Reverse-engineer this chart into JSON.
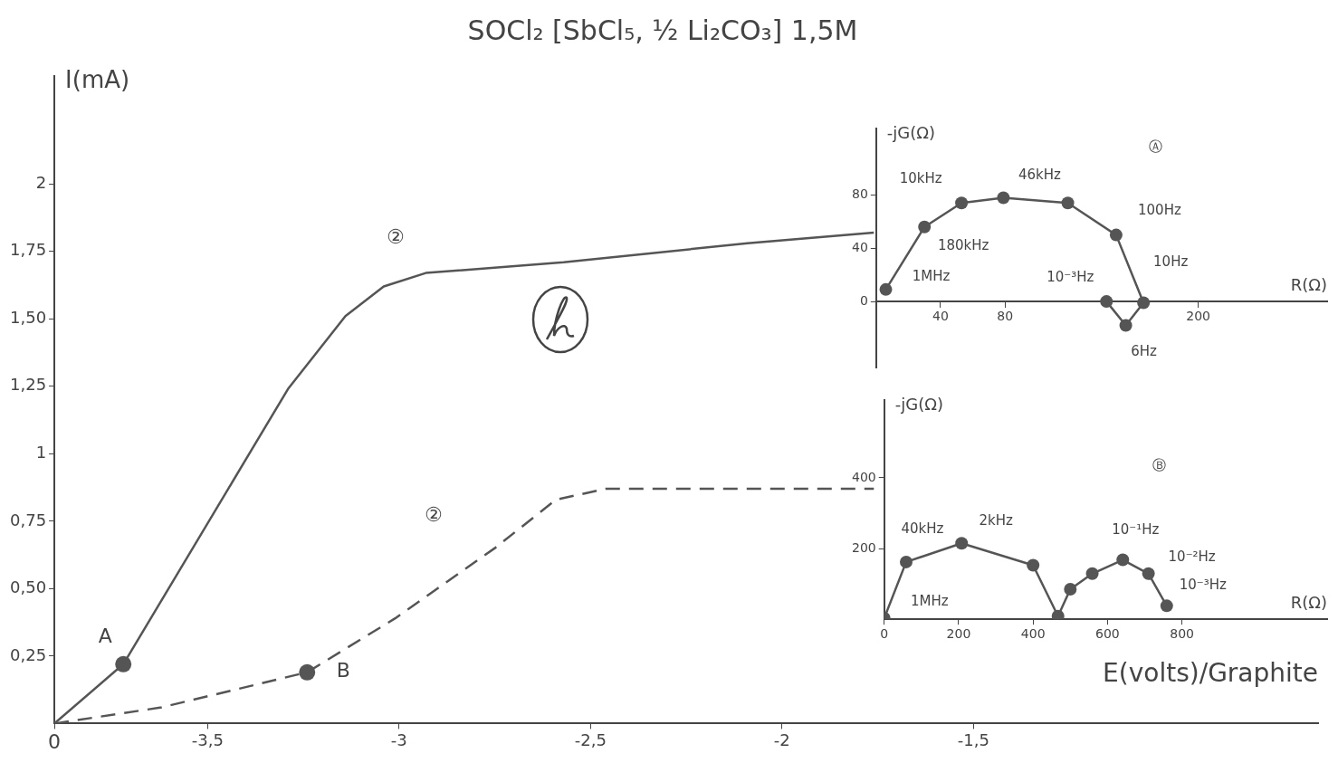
{
  "chart_data": [
    {
      "type": "line",
      "title": "SOCl₂ [SbCl₅, ½ Li₂CO₃] 1,5M",
      "xlabel": "E(volts)/Graphite",
      "ylabel": "I(mA)",
      "xlim": [
        -3.9,
        -0.6
      ],
      "xticks": [
        {
          "value": -3.9,
          "label": null
        },
        {
          "value": -3.5,
          "label": "-3,5"
        },
        {
          "value": -3,
          "label": "-3"
        },
        {
          "value": -2.5,
          "label": "-2,5"
        },
        {
          "value": -2,
          "label": "-2"
        },
        {
          "value": -1.5,
          "label": "-1,5"
        }
      ],
      "ylim": [
        0,
        2.4
      ],
      "yticks": [
        {
          "value": 0.25,
          "label": "0,25"
        },
        {
          "value": 0.5,
          "label": "0,50"
        },
        {
          "value": 0.75,
          "label": "0,75"
        },
        {
          "value": 1,
          "label": "1"
        },
        {
          "value": 1.25,
          "label": "1,25"
        },
        {
          "value": 1.5,
          "label": "1,50"
        },
        {
          "value": 1.75,
          "label": "1,75"
        },
        {
          "value": 2,
          "label": "2"
        }
      ],
      "grid": false,
      "legend": false,
      "series": [
        {
          "type": "line",
          "color": "#555555",
          "line_style": "solid",
          "marker": "none",
          "x": [
            -3.9,
            -3.72,
            -3.29,
            -3.14,
            -3.04,
            -2.93,
            -2.57,
            -2.09,
            -1.76
          ],
          "values": [
            0,
            0.22,
            1.24,
            1.51,
            1.62,
            1.67,
            1.71,
            1.78,
            1.82
          ]
        },
        {
          "type": "line",
          "color": "#555555",
          "line_style": "dashed",
          "marker": "none",
          "x": [
            -3.9,
            -3.62,
            -3.24,
            -3.01,
            -2.75,
            -2.59,
            -2.46,
            -2.09,
            -1.76
          ],
          "values": [
            0,
            0.06,
            0.19,
            0.39,
            0.65,
            0.83,
            0.87,
            0.87,
            0.87
          ]
        },
        {
          "type": "scatter",
          "color": "#555555",
          "marker": "circle",
          "x": [
            -3.72,
            -3.24
          ],
          "values": [
            0.22,
            0.19
          ]
        }
      ],
      "annotations": [
        {
          "text": "A",
          "x": -3.72,
          "y": 0.22
        },
        {
          "text": "B",
          "x": -3.24,
          "y": 0.19
        },
        "②",
        "②",
        "0"
      ]
    },
    {
      "type": "line",
      "xlabel": "R(Ω)",
      "ylabel": "-jG(Ω)",
      "xlim": [
        0,
        280
      ],
      "xticks": [
        40,
        80,
        200
      ],
      "ylim": [
        -50,
        130
      ],
      "yticks": [
        0,
        40,
        80
      ],
      "grid": false,
      "legend": false,
      "series": [
        {
          "type": "line",
          "color": "#555555",
          "line_style": "solid",
          "marker": "circle",
          "x": [
            6,
            30,
            53,
            79,
            119,
            149,
            166,
            155,
            143
          ],
          "values": [
            9,
            56,
            74,
            78,
            74,
            50,
            -1,
            -18,
            0
          ]
        }
      ],
      "annotations": [
        "Ⓐ",
        {
          "text": "1MHz",
          "x": 6,
          "y": 9
        },
        {
          "text": "180kHz",
          "x": 30,
          "y": 56
        },
        {
          "text": "10kHz",
          "x": 53,
          "y": 74
        },
        {
          "text": "46kHz",
          "x": 79,
          "y": 78
        },
        {
          "text": "100Hz",
          "x": 149,
          "y": 50
        },
        {
          "text": "10Hz",
          "x": 166,
          "y": -1
        },
        {
          "text": "6Hz",
          "x": 155,
          "y": -18
        },
        {
          "text": "10⁻³Hz",
          "x": 143,
          "y": 0
        }
      ]
    },
    {
      "type": "line",
      "xlabel": "R(Ω)",
      "ylabel": "-jG(Ω)",
      "xlim": [
        0,
        1190
      ],
      "xticks": [
        0,
        200,
        400,
        600,
        800
      ],
      "ylim": [
        0,
        620
      ],
      "yticks": [
        200,
        400
      ],
      "grid": false,
      "legend": false,
      "series": [
        {
          "type": "line",
          "color": "#555555",
          "line_style": "solid",
          "marker": "circle",
          "x": [
            0,
            59,
            208,
            400,
            467,
            500,
            559,
            641,
            710,
            759
          ],
          "values": [
            3,
            162,
            215,
            153,
            9,
            85,
            129,
            168,
            129,
            38
          ]
        }
      ],
      "annotations": [
        "Ⓑ",
        {
          "text": "1MHz",
          "x": 0,
          "y": 3
        },
        {
          "text": "40kHz",
          "x": 59,
          "y": 162
        },
        {
          "text": "2kHz",
          "x": 208,
          "y": 215
        },
        {
          "text": "10⁻¹Hz",
          "x": 641,
          "y": 168
        },
        {
          "text": "10⁻²Hz",
          "x": 710,
          "y": 129
        },
        {
          "text": "10⁻³Hz",
          "x": 759,
          "y": 38
        }
      ]
    }
  ]
}
